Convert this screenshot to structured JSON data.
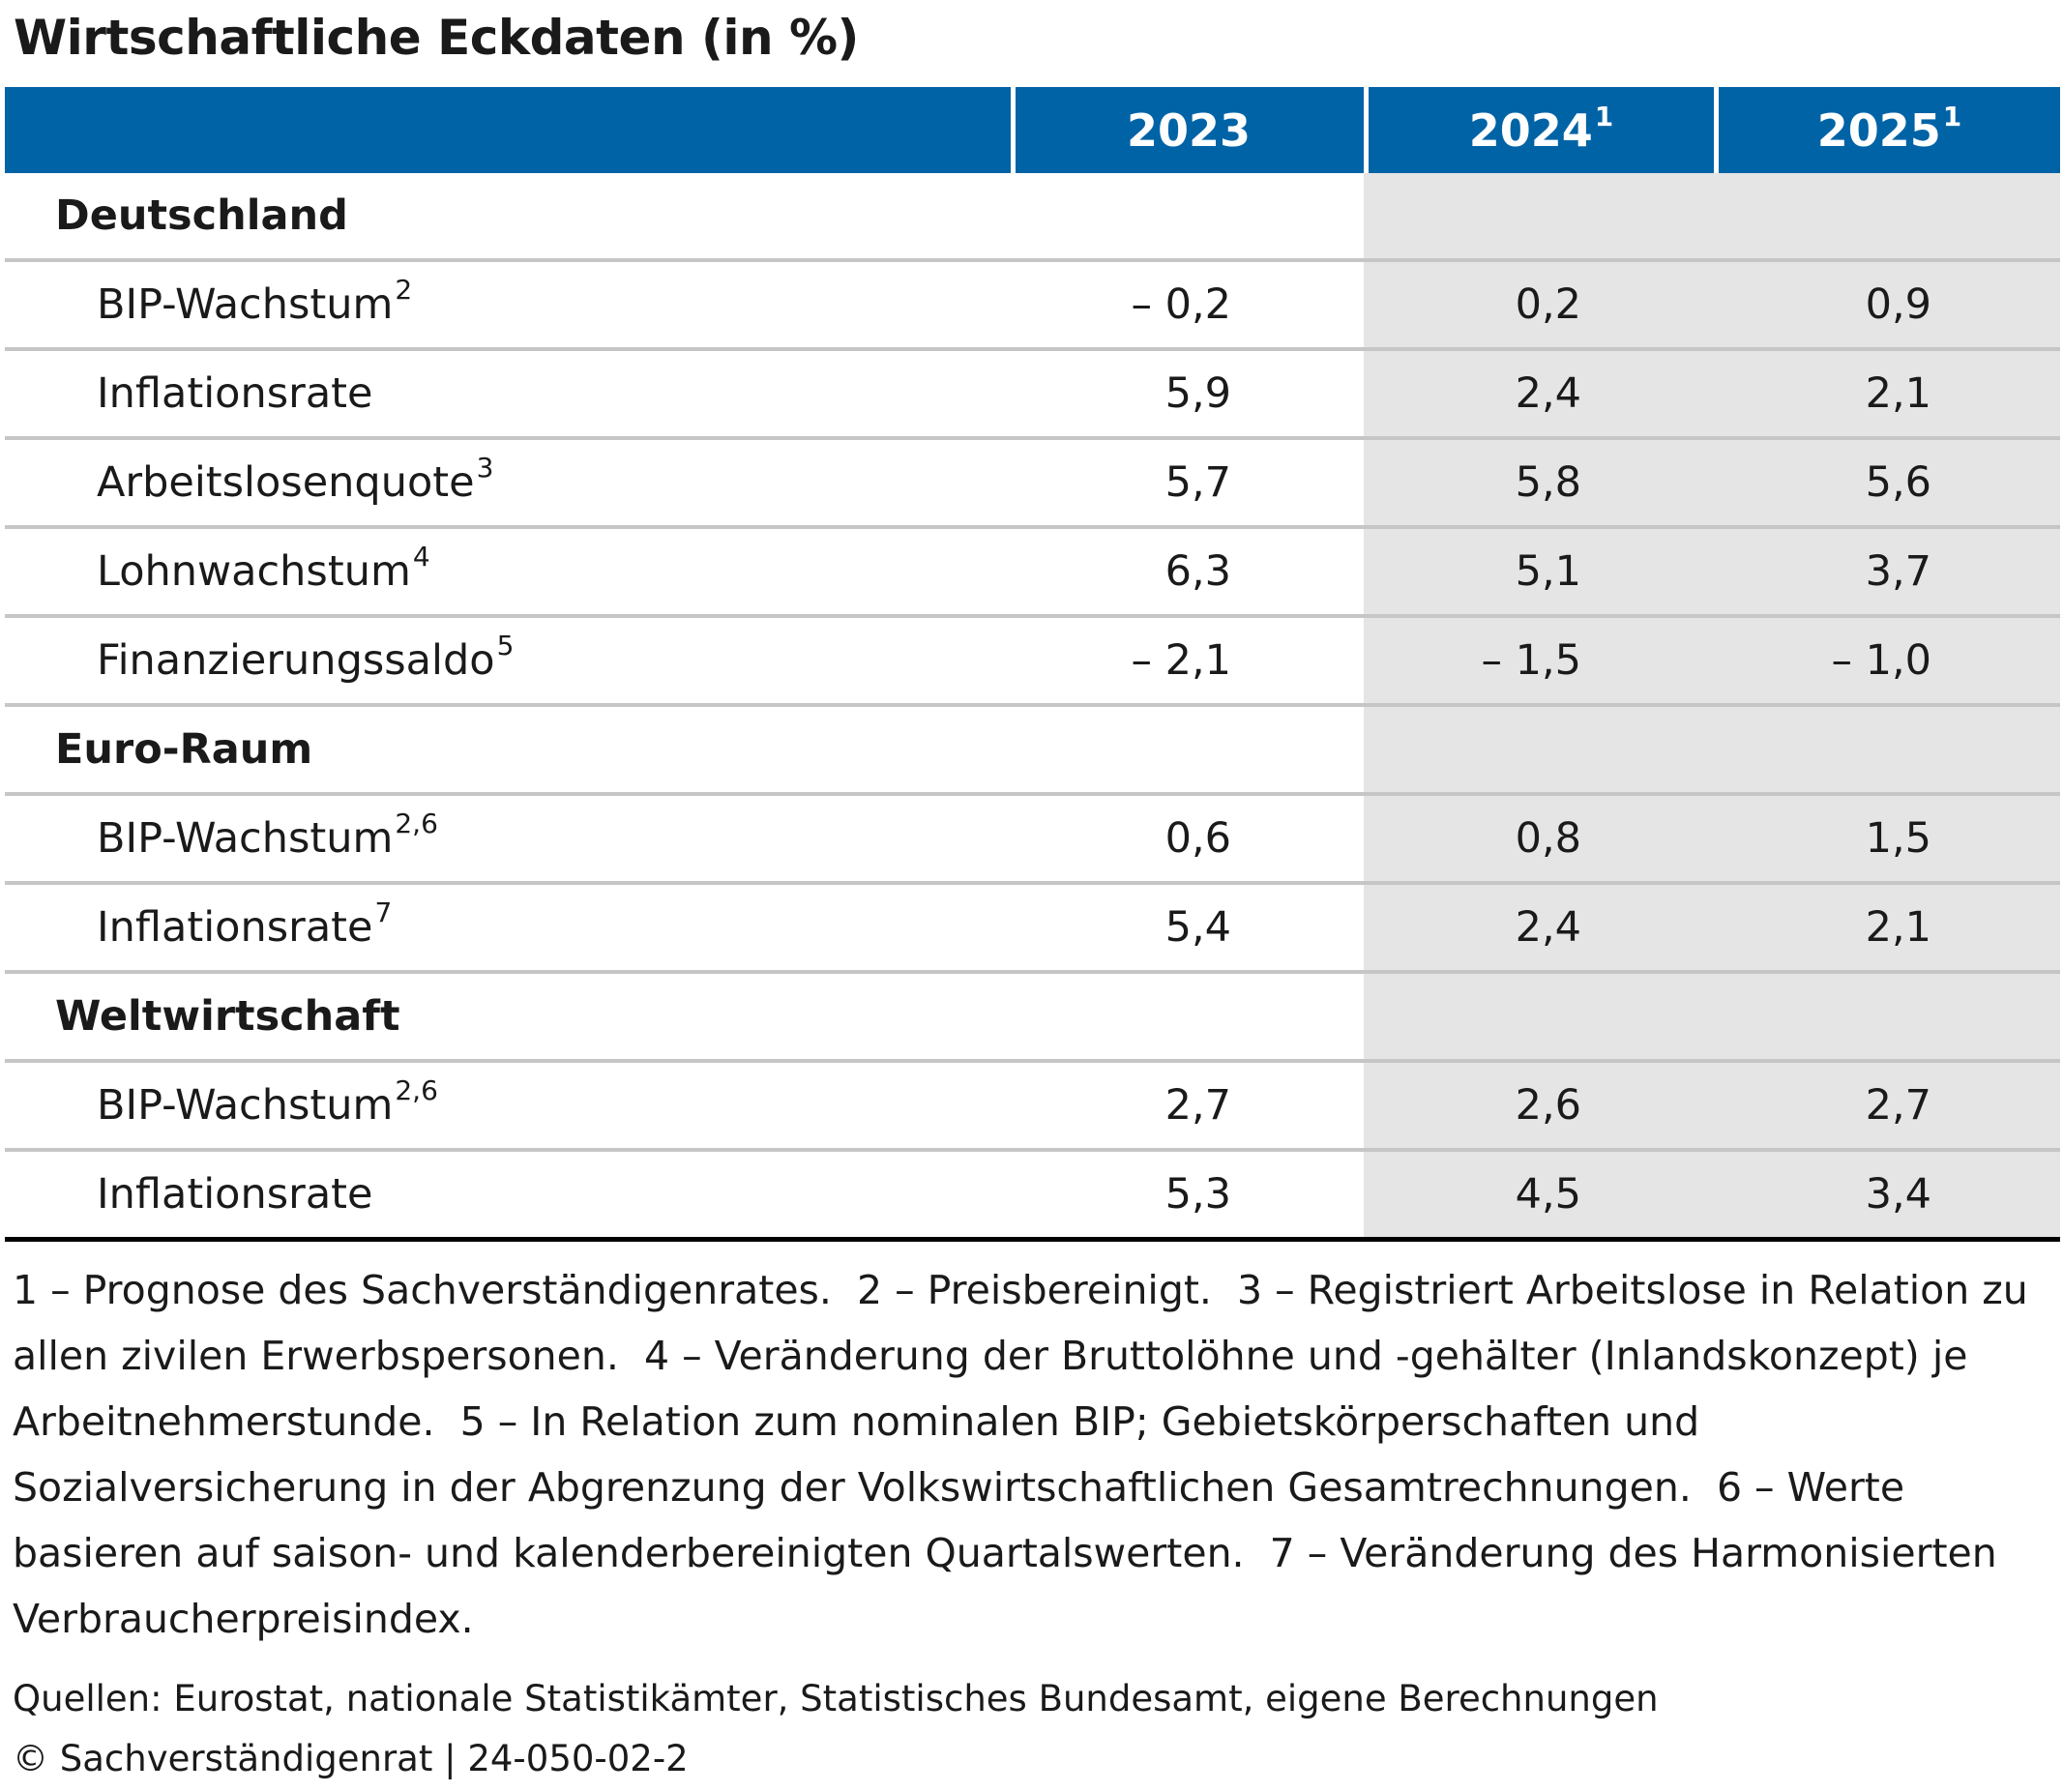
{
  "title": "Wirtschaftliche Eckdaten (in %)",
  "header": {
    "cols": [
      {
        "label": "2023",
        "sup": ""
      },
      {
        "label": "2024",
        "sup": "1"
      },
      {
        "label": "2025",
        "sup": "1"
      }
    ]
  },
  "chart_data": {
    "type": "table",
    "title": "Wirtschaftliche Eckdaten (in %)",
    "columns": [
      "2023",
      "2024",
      "2025"
    ],
    "column_footnotes": [
      "",
      "1",
      "1"
    ],
    "sections": [
      {
        "name": "Deutschland",
        "rows": [
          {
            "label": "BIP-Wachstum",
            "sup": "2",
            "values": [
              "– 0,2",
              "0,2",
              "0,9"
            ]
          },
          {
            "label": "Inflationsrate",
            "sup": "",
            "values": [
              "5,9",
              "2,4",
              "2,1"
            ]
          },
          {
            "label": "Arbeitslosenquote",
            "sup": "3",
            "values": [
              "5,7",
              "5,8",
              "5,6"
            ]
          },
          {
            "label": "Lohnwachstum",
            "sup": "4",
            "values": [
              "6,3",
              "5,1",
              "3,7"
            ]
          },
          {
            "label": "Finanzierungssaldo",
            "sup": "5",
            "values": [
              "– 2,1",
              "– 1,5",
              "– 1,0"
            ]
          }
        ]
      },
      {
        "name": "Euro-Raum",
        "rows": [
          {
            "label": "BIP-Wachstum",
            "sup": "2,6",
            "values": [
              "0,6",
              "0,8",
              "1,5"
            ]
          },
          {
            "label": "Inflationsrate",
            "sup": "7",
            "values": [
              "5,4",
              "2,4",
              "2,1"
            ]
          }
        ]
      },
      {
        "name": "Weltwirtschaft",
        "rows": [
          {
            "label": "BIP-Wachstum",
            "sup": "2,6",
            "values": [
              "2,7",
              "2,6",
              "2,7"
            ]
          },
          {
            "label": "Inflationsrate",
            "sup": "",
            "values": [
              "5,3",
              "4,5",
              "3,4"
            ]
          }
        ]
      }
    ]
  },
  "footnotes": [
    "1 – Prognose des Sachverständigenrates.",
    "2 – Preisbereinigt.",
    "3 – Registriert Arbeitslose in Relation zu allen zivilen Erwerbspersonen.",
    "4 – Veränderung der Bruttolöhne und -gehälter (Inlandskonzept) je Arbeitnehmerstunde.",
    "5 – In Relation zum nominalen BIP; Gebietskörperschaften und Sozialversicherung in der Abgrenzung der Volkswirtschaftlichen Gesamtrechnungen.",
    "6 – Werte basieren auf saison- und kalenderbereinigten Quartalswerten.",
    "7 – Veränderung des Harmonisierten Verbraucherpreisindex."
  ],
  "source": "Quellen: Eurostat, nationale Statistikämter, Statistisches Bundesamt, eigene Berechnungen",
  "copyright": "© Sachverständigenrat | 24-050-02-2",
  "colors": {
    "header_bg": "#0063a6",
    "header_text": "#ffffff",
    "forecast_shade": "#e5e5e5",
    "row_rule": "#c6c6c6"
  }
}
